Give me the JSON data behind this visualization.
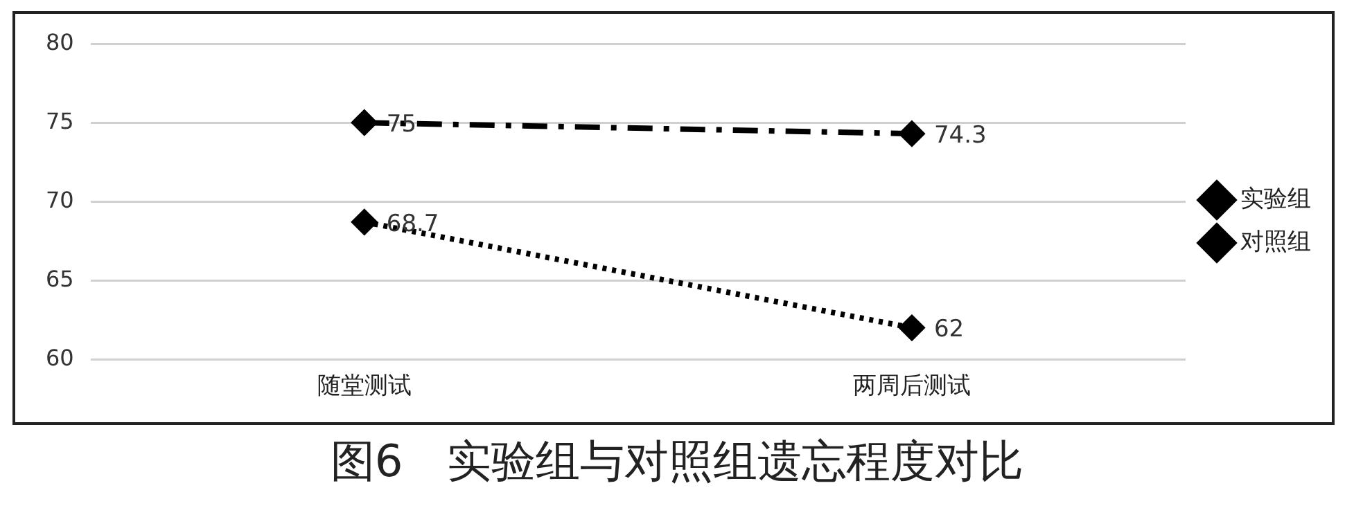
{
  "chart_data": {
    "type": "line",
    "title": "图6　实验组与对照组遗忘程度对比",
    "categories": [
      "随堂测试",
      "两周后测试"
    ],
    "series": [
      {
        "name": "实验组",
        "color": "#000000",
        "values": [
          75,
          74.3
        ],
        "line_style": "dashed"
      },
      {
        "name": "对照组",
        "color": "#000000",
        "values": [
          68.7,
          62
        ],
        "line_style": "dotted"
      }
    ],
    "ylim": [
      60,
      80
    ],
    "yticks": [
      60,
      65,
      70,
      75,
      80
    ],
    "grid": "y",
    "legend": "right",
    "marker": "diamond",
    "data_labels": true
  }
}
